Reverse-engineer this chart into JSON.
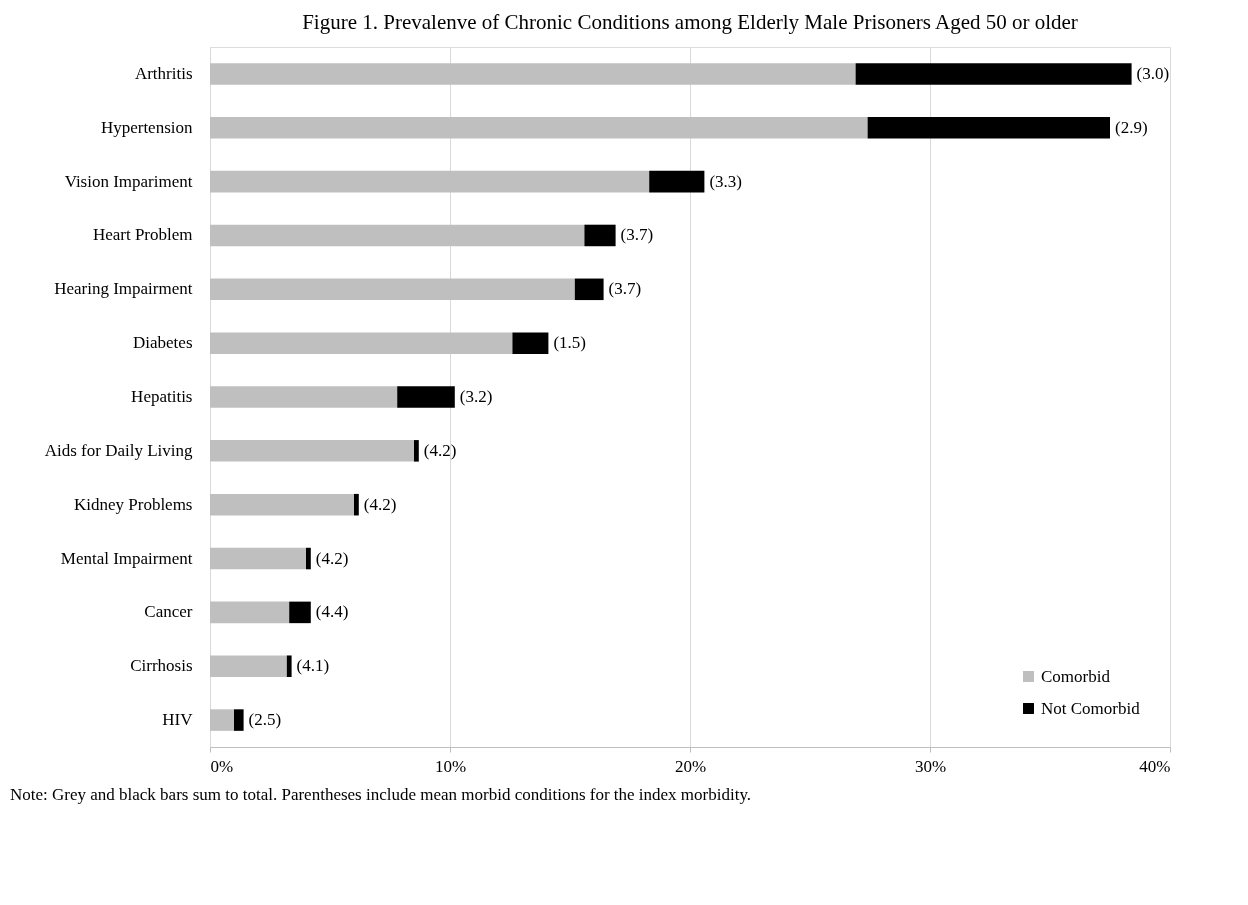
{
  "chart_data": {
    "type": "bar",
    "orientation": "horizontal",
    "stacked": true,
    "title": "Figure 1. Prevalenve of Chronic Conditions among Elderly Male Prisoners Aged 50 or older",
    "categories": [
      "Arthritis",
      "Hypertension",
      "Vision Impariment",
      "Heart Problem",
      "Hearing Impairment",
      "Diabetes",
      "Hepatitis",
      "Aids for Daily Living",
      "Kidney Problems",
      "Mental Impairment",
      "Cancer",
      "Cirrhosis",
      "HIV"
    ],
    "series": [
      {
        "name": "Comorbid",
        "color": "#bfbfbf",
        "values": [
          26.9,
          27.4,
          18.3,
          15.6,
          15.2,
          12.6,
          7.8,
          8.5,
          6.0,
          4.0,
          3.3,
          3.2,
          1.0
        ]
      },
      {
        "name": "Not Comorbid",
        "color": "#000000",
        "values": [
          11.5,
          10.1,
          2.3,
          1.3,
          1.2,
          1.5,
          2.4,
          0.2,
          0.2,
          0.2,
          0.9,
          0.2,
          0.4
        ]
      }
    ],
    "xlim": [
      0,
      40
    ],
    "xticks": [
      {
        "value": 0,
        "label": "0%"
      },
      {
        "value": 10,
        "label": "10%"
      },
      {
        "value": 20,
        "label": "20%"
      },
      {
        "value": 30,
        "label": "30%"
      },
      {
        "value": 40,
        "label": "40%"
      }
    ],
    "grid": "x",
    "legend": "bottom right",
    "annotations": [
      {
        "text": "(3.0)",
        "x": 38.4,
        "y": "Arthritis"
      },
      {
        "text": "(2.9)",
        "x": 37.5,
        "y": "Hypertension"
      },
      {
        "text": "(3.3)",
        "x": 20.6,
        "y": "Vision Impariment"
      },
      {
        "text": "(3.7)",
        "x": 16.9,
        "y": "Heart Problem"
      },
      {
        "text": "(3.7)",
        "x": 16.4,
        "y": "Hearing Impairment"
      },
      {
        "text": "(1.5)",
        "x": 14.1,
        "y": "Diabetes"
      },
      {
        "text": "(3.2)",
        "x": 10.2,
        "y": "Hepatitis"
      },
      {
        "text": "(4.2)",
        "x": 8.7,
        "y": "Aids for Daily Living"
      },
      {
        "text": "(4.2)",
        "x": 6.2,
        "y": "Kidney Problems"
      },
      {
        "text": "(4.2)",
        "x": 4.2,
        "y": "Mental Impairment"
      },
      {
        "text": "(4.4)",
        "x": 4.2,
        "y": "Cancer"
      },
      {
        "text": "(4.1)",
        "x": 3.4,
        "y": "Cirrhosis"
      },
      {
        "text": "(2.5)",
        "x": 1.4,
        "y": "HIV"
      },
      "Note: Grey and black bars sum to total. Parentheses include mean morbid conditions for the index morbidity."
    ]
  }
}
